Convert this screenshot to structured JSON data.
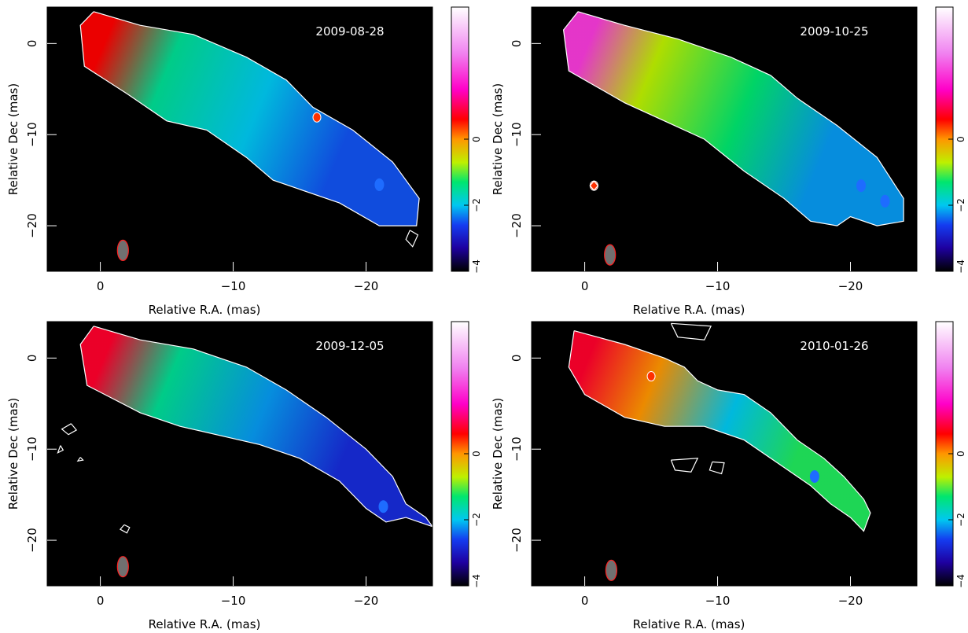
{
  "chart_data": [
    {
      "type": "heatmap",
      "title": "2009-08-28",
      "xlabel": "Relative R.A. (mas)",
      "ylabel": "Relative Dec (mas)",
      "xlim": [
        4.0,
        -25.0
      ],
      "ylim": [
        -25.0,
        4.0
      ],
      "xticks": [
        0,
        -10,
        -20
      ],
      "yticks": [
        0,
        -10,
        -20
      ],
      "colorbar": {
        "range": [
          -4,
          4
        ],
        "ticks": [
          0,
          -2,
          -4
        ]
      },
      "beam": {
        "x": -1.7,
        "y": -22.7
      },
      "hot_spots": [
        {
          "x": -16.3,
          "y": -8.1
        }
      ],
      "blobs": [
        {
          "x": -21.0,
          "y": -15.5
        }
      ],
      "knots": [
        {
          "x": 0.0,
          "y": -1.0,
          "v": 0.6
        },
        {
          "x": -5.0,
          "y": -2.5,
          "v": -1.5
        },
        {
          "x": -12.0,
          "y": -6.5,
          "v": -2.0
        },
        {
          "x": -18.0,
          "y": -12.0,
          "v": -2.5
        }
      ],
      "contours": [
        [
          [
            0.5,
            3.5
          ],
          [
            -3,
            2
          ],
          [
            -7,
            1
          ],
          [
            -11,
            -1.5
          ],
          [
            -14,
            -4
          ],
          [
            -16,
            -7
          ],
          [
            -19,
            -9.5
          ],
          [
            -22,
            -13
          ],
          [
            -24,
            -17
          ],
          [
            -23.8,
            -20
          ],
          [
            -21,
            -20
          ],
          [
            -18,
            -17.5
          ],
          [
            -15,
            -16
          ],
          [
            -13,
            -15
          ],
          [
            -11,
            -12.5
          ],
          [
            -8,
            -9.5
          ],
          [
            -5,
            -8.5
          ],
          [
            -2,
            -5.5
          ],
          [
            1.2,
            -2.5
          ],
          [
            1.5,
            2
          ],
          [
            0.5,
            3.5
          ]
        ],
        [
          [
            -23.3,
            -20.5
          ],
          [
            -23.9,
            -21
          ],
          [
            -23.5,
            -22.3
          ],
          [
            -23,
            -21.5
          ],
          [
            -23.3,
            -20.5
          ]
        ]
      ]
    },
    {
      "type": "heatmap",
      "title": "2009-10-25",
      "xlabel": "Relative R.A. (mas)",
      "ylabel": "Relative Dec (mas)",
      "xlim": [
        4.0,
        -25.0
      ],
      "ylim": [
        -25.0,
        4.0
      ],
      "xticks": [
        0,
        -10,
        -20
      ],
      "yticks": [
        0,
        -10,
        -20
      ],
      "colorbar": {
        "range": [
          -4,
          4
        ],
        "ticks": [
          0,
          -2,
          -4
        ]
      },
      "beam": {
        "x": -1.9,
        "y": -23.2
      },
      "hot_spots": [
        {
          "x": -0.7,
          "y": -15.6
        }
      ],
      "blobs": [
        {
          "x": -20.8,
          "y": -15.6
        },
        {
          "x": -22.6,
          "y": -17.3
        }
      ],
      "knots": [
        {
          "x": 0.0,
          "y": -1.0,
          "v": 2.0
        },
        {
          "x": -5.0,
          "y": -2.5,
          "v": -0.7
        },
        {
          "x": -12.0,
          "y": -6.5,
          "v": -1.3
        },
        {
          "x": -18.0,
          "y": -12.0,
          "v": -2.2
        }
      ],
      "contours": [
        [
          [
            0.5,
            3.5
          ],
          [
            -3,
            2
          ],
          [
            -7,
            0.5
          ],
          [
            -11,
            -1.5
          ],
          [
            -14,
            -3.5
          ],
          [
            -16,
            -6
          ],
          [
            -19,
            -9
          ],
          [
            -22,
            -12.5
          ],
          [
            -24,
            -17
          ],
          [
            -24,
            -19.5
          ],
          [
            -22,
            -20
          ],
          [
            -20,
            -19
          ],
          [
            -19,
            -20
          ],
          [
            -17,
            -19.5
          ],
          [
            -15,
            -17
          ],
          [
            -12,
            -14
          ],
          [
            -9,
            -10.5
          ],
          [
            -6,
            -8.5
          ],
          [
            -3,
            -6.5
          ],
          [
            1.2,
            -3
          ],
          [
            1.6,
            1.5
          ],
          [
            0.5,
            3.5
          ]
        ],
        [
          [
            -0.7,
            -15.1
          ],
          [
            -1.0,
            -15.6
          ],
          [
            -0.7,
            -16.1
          ],
          [
            -0.4,
            -15.6
          ],
          [
            -0.7,
            -15.1
          ]
        ]
      ]
    },
    {
      "type": "heatmap",
      "title": "2009-12-05",
      "xlabel": "Relative R.A. (mas)",
      "ylabel": "Relative Dec (mas)",
      "xlim": [
        4.0,
        -25.0
      ],
      "ylim": [
        -25.0,
        4.0
      ],
      "xticks": [
        0,
        -10,
        -20
      ],
      "yticks": [
        0,
        -10,
        -20
      ],
      "colorbar": {
        "range": [
          -4,
          4
        ],
        "ticks": [
          0,
          -2,
          -4
        ]
      },
      "beam": {
        "x": -1.7,
        "y": -22.9
      },
      "hot_spots": [],
      "blobs": [
        {
          "x": -21.3,
          "y": -16.3
        }
      ],
      "knots": [
        {
          "x": 0.0,
          "y": -1.0,
          "v": 0.8
        },
        {
          "x": -5.0,
          "y": -2.5,
          "v": -1.5
        },
        {
          "x": -12.0,
          "y": -6.5,
          "v": -2.2
        },
        {
          "x": -18.0,
          "y": -12.0,
          "v": -2.8
        }
      ],
      "contours": [
        [
          [
            0.5,
            3.5
          ],
          [
            -3,
            2
          ],
          [
            -7,
            1
          ],
          [
            -11,
            -1
          ],
          [
            -14,
            -3.5
          ],
          [
            -17,
            -6.5
          ],
          [
            -20,
            -10
          ],
          [
            -22,
            -13
          ],
          [
            -23,
            -16
          ],
          [
            -24.5,
            -17.5
          ],
          [
            -25,
            -18.5
          ],
          [
            -23,
            -17.5
          ],
          [
            -21.5,
            -18
          ],
          [
            -20,
            -16.5
          ],
          [
            -18,
            -13.5
          ],
          [
            -15,
            -11
          ],
          [
            -12,
            -9.5
          ],
          [
            -9,
            -8.5
          ],
          [
            -6,
            -7.5
          ],
          [
            -3,
            -6
          ],
          [
            1,
            -3
          ],
          [
            1.5,
            1.5
          ],
          [
            0.5,
            3.5
          ]
        ],
        [
          [
            2.2,
            -7.2
          ],
          [
            1.8,
            -7.9
          ],
          [
            2.4,
            -8.4
          ],
          [
            2.9,
            -7.8
          ],
          [
            2.2,
            -7.2
          ]
        ],
        [
          [
            3.0,
            -9.6
          ],
          [
            3.2,
            -10.4
          ],
          [
            2.8,
            -10.1
          ],
          [
            3.0,
            -9.6
          ]
        ],
        [
          [
            1.5,
            -10.9
          ],
          [
            1.3,
            -11.2
          ],
          [
            1.7,
            -11.3
          ],
          [
            1.5,
            -10.9
          ]
        ],
        [
          [
            -1.8,
            -18.3
          ],
          [
            -1.5,
            -18.8
          ],
          [
            -2.0,
            -19.2
          ],
          [
            -2.2,
            -18.6
          ],
          [
            -1.8,
            -18.3
          ]
        ]
      ]
    },
    {
      "type": "heatmap",
      "title": "2010-01-26",
      "xlabel": "Relative R.A. (mas)",
      "ylabel": "Relative Dec (mas)",
      "xlim": [
        4.0,
        -25.0
      ],
      "ylim": [
        -25.0,
        4.0
      ],
      "xticks": [
        0,
        -10,
        -20
      ],
      "yticks": [
        0,
        -10,
        -20
      ],
      "colorbar": {
        "range": [
          -4,
          4
        ],
        "ticks": [
          0,
          -2,
          -4
        ]
      },
      "beam": {
        "x": -2.0,
        "y": -23.3
      },
      "hot_spots": [
        {
          "x": -5.0,
          "y": -2.0
        }
      ],
      "blobs": [
        {
          "x": -17.3,
          "y": -13.0
        }
      ],
      "knots": [
        {
          "x": 0.0,
          "y": -1.0,
          "v": 0.8
        },
        {
          "x": -5.0,
          "y": -3.0,
          "v": 0.0
        },
        {
          "x": -11.0,
          "y": -6.0,
          "v": -2.0
        },
        {
          "x": -16.0,
          "y": -10.5,
          "v": -1.2
        }
      ],
      "contours": [
        [
          [
            0.8,
            3
          ],
          [
            -3,
            1.5
          ],
          [
            -6,
            0
          ],
          [
            -7.5,
            -1
          ],
          [
            -8.5,
            -2.5
          ],
          [
            -10,
            -3.5
          ],
          [
            -12,
            -4
          ],
          [
            -14,
            -6
          ],
          [
            -16,
            -9
          ],
          [
            -18,
            -11
          ],
          [
            -19.5,
            -13
          ],
          [
            -21,
            -15.5
          ],
          [
            -21.5,
            -17
          ],
          [
            -21,
            -19
          ],
          [
            -20,
            -17.5
          ],
          [
            -18.5,
            -16
          ],
          [
            -17,
            -14
          ],
          [
            -15,
            -12
          ],
          [
            -12,
            -9
          ],
          [
            -9,
            -7.5
          ],
          [
            -6,
            -7.5
          ],
          [
            -3,
            -6.5
          ],
          [
            0,
            -4
          ],
          [
            1.2,
            -1
          ],
          [
            0.8,
            3
          ]
        ],
        [
          [
            -6.5,
            3.8
          ],
          [
            -9.5,
            3.5
          ],
          [
            -9.0,
            2.0
          ],
          [
            -7.0,
            2.3
          ],
          [
            -6.5,
            3.8
          ]
        ],
        [
          [
            -6.5,
            -11.2
          ],
          [
            -8.5,
            -11.0
          ],
          [
            -8.0,
            -12.5
          ],
          [
            -6.8,
            -12.3
          ],
          [
            -6.5,
            -11.2
          ]
        ],
        [
          [
            -9.6,
            -11.4
          ],
          [
            -10.5,
            -11.5
          ],
          [
            -10.3,
            -12.7
          ],
          [
            -9.4,
            -12.3
          ],
          [
            -9.6,
            -11.4
          ]
        ]
      ]
    }
  ]
}
